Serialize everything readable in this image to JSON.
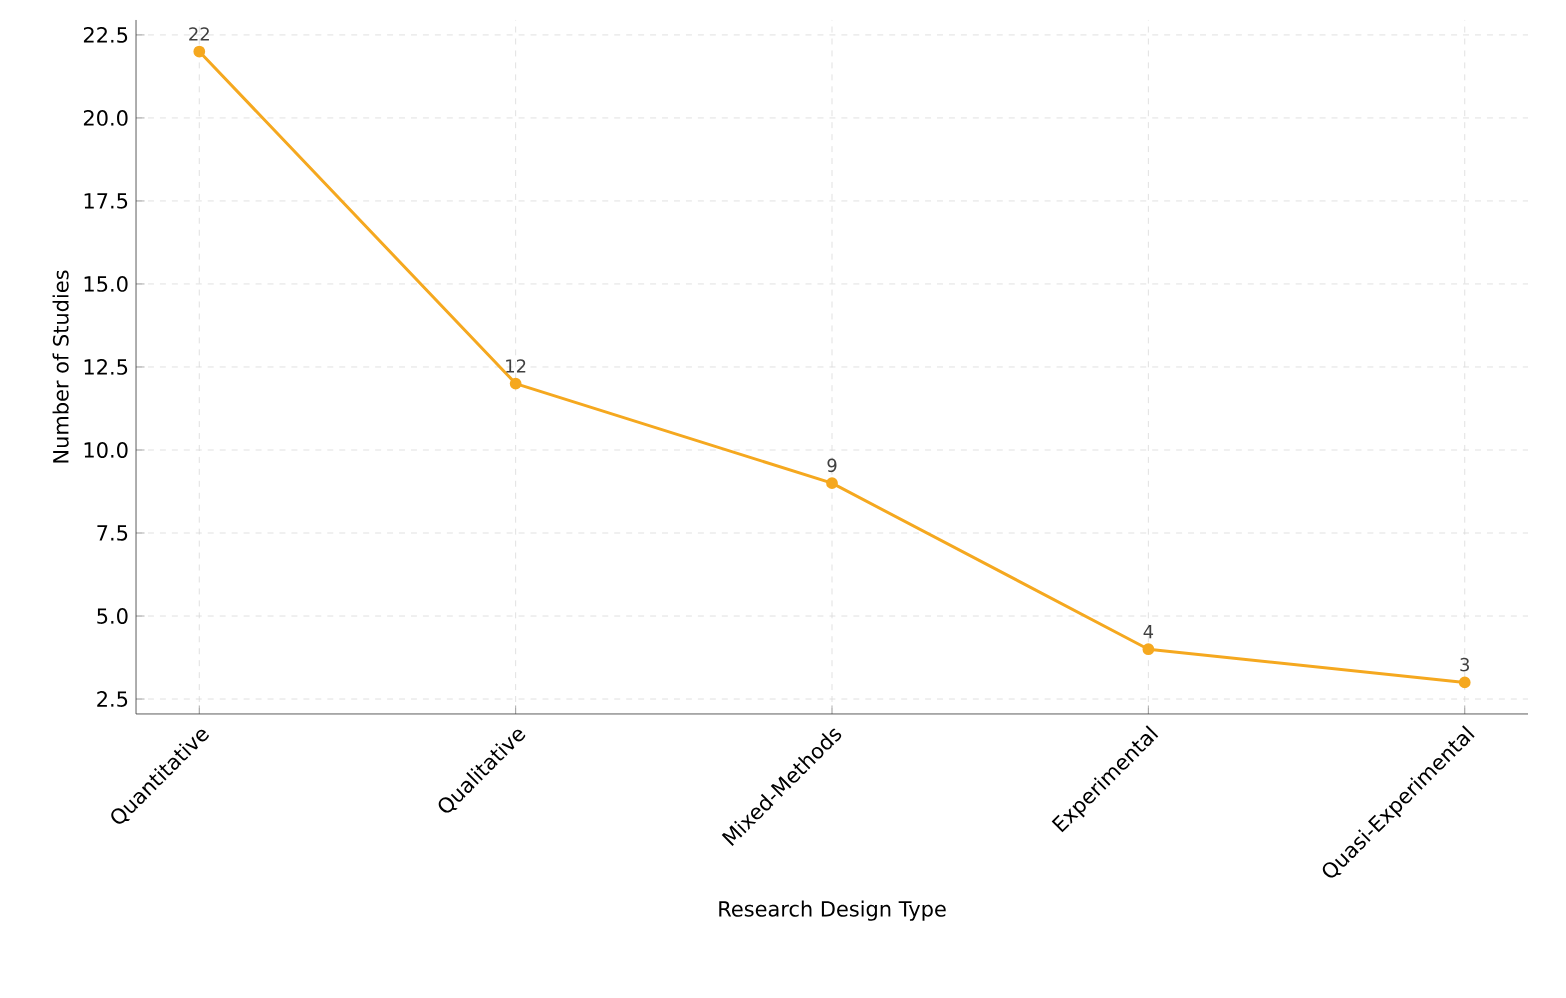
{
  "chart_data": {
    "type": "line",
    "xlabel": "Research Design Type",
    "ylabel": "Number of Studies",
    "categories": [
      "Quantitative",
      "Qualitative",
      "Mixed-Methods",
      "Experimental",
      "Quasi-Experimental"
    ],
    "values": [
      22,
      12,
      9,
      4,
      3
    ],
    "color": "#f5a81f",
    "marker": "circle",
    "line_style": "solid",
    "data_labels": true,
    "grid": true,
    "ylim": [
      2.05,
      22.95
    ],
    "yticks": [
      {
        "value": 2.5,
        "label": "2.5"
      },
      {
        "value": 5,
        "label": "5.0"
      },
      {
        "value": 7.5,
        "label": "7.5"
      },
      {
        "value": 10,
        "label": "10.0"
      },
      {
        "value": 12.5,
        "label": "12.5"
      },
      {
        "value": 15,
        "label": "15.0"
      },
      {
        "value": 17.5,
        "label": "17.5"
      },
      {
        "value": 20,
        "label": "20.0"
      },
      {
        "value": 22.5,
        "label": "22.5"
      }
    ]
  }
}
